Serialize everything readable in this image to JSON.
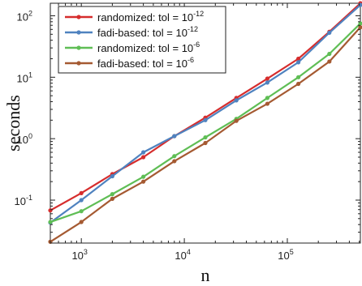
{
  "chart_data": {
    "type": "line",
    "xscale": "log",
    "yscale": "log",
    "xlabel": "n",
    "ylabel": "seconds",
    "xlim": [
      500,
      512000
    ],
    "ylim": [
      0.02,
      160
    ],
    "x_ticks": [
      {
        "base": "10",
        "exp": "3",
        "value": 1000
      },
      {
        "base": "10",
        "exp": "4",
        "value": 10000
      },
      {
        "base": "10",
        "exp": "5",
        "value": 100000
      }
    ],
    "y_ticks": [
      {
        "base": "10",
        "exp": "-1",
        "value": 0.1
      },
      {
        "base": "10",
        "exp": "0",
        "value": 1
      },
      {
        "base": "10",
        "exp": "1",
        "value": 10
      },
      {
        "base": "10",
        "exp": "2",
        "value": 100
      }
    ],
    "x": [
      500,
      1000,
      2000,
      4000,
      8000,
      16000,
      32000,
      64000,
      128000,
      256000,
      512000
    ],
    "series": [
      {
        "name": "randomized: tol = 10",
        "name_exp": "-12",
        "color": "#d62d2d",
        "values": [
          0.068,
          0.13,
          0.265,
          0.5,
          1.1,
          2.2,
          4.6,
          9.5,
          20,
          55,
          160
        ]
      },
      {
        "name": "fadi-based: tol = 10",
        "name_exp": "-12",
        "color": "#4f82bf",
        "values": [
          0.043,
          0.1,
          0.245,
          0.6,
          1.1,
          2.0,
          4.2,
          8.2,
          17.5,
          53,
          150
        ]
      },
      {
        "name": "randomized: tol = 10",
        "name_exp": "-6",
        "color": "#5fbe55",
        "values": [
          0.044,
          0.066,
          0.125,
          0.24,
          0.52,
          1.05,
          2.1,
          4.6,
          10,
          24,
          75
        ]
      },
      {
        "name": "fadi-based: tol = 10",
        "name_exp": "-6",
        "color": "#a55a32",
        "values": [
          0.021,
          0.044,
          0.105,
          0.2,
          0.43,
          0.85,
          1.95,
          3.7,
          7.8,
          18,
          65
        ]
      }
    ],
    "grid": false,
    "legend": "top-left"
  }
}
